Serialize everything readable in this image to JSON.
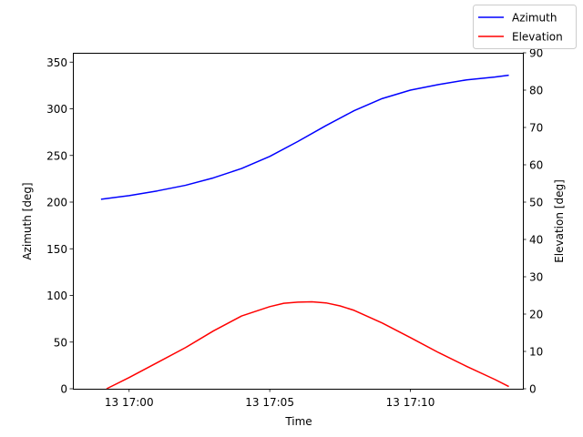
{
  "chart_data": {
    "type": "line",
    "title": "",
    "xlabel": "Time",
    "ylabel_left": "Azimuth [deg]",
    "ylabel_right": "Elevation [deg]",
    "x_ticks": [
      "13 17:00",
      "13 17:05",
      "13 17:10"
    ],
    "x_tick_values": [
      "17:00",
      "17:05",
      "17:10"
    ],
    "xlim": [
      "16:58",
      "17:14"
    ],
    "ylim_left": [
      0,
      360
    ],
    "ylim_right": [
      0,
      90
    ],
    "y_ticks_left": [
      0,
      50,
      100,
      150,
      200,
      250,
      300,
      350
    ],
    "y_ticks_right": [
      0,
      10,
      20,
      30,
      40,
      50,
      60,
      70,
      80,
      90
    ],
    "grid": false,
    "legend_position": "top-right",
    "series": [
      {
        "name": "Azimuth",
        "axis": "left",
        "color": "#0000ff",
        "x": [
          "16:59",
          "17:00",
          "17:01",
          "17:02",
          "17:03",
          "17:04",
          "17:05",
          "17:06",
          "17:07",
          "17:08",
          "17:09",
          "17:10",
          "17:11",
          "17:12",
          "17:13",
          "17:13.5"
        ],
        "values": [
          203,
          207,
          212,
          218,
          226,
          236,
          249,
          265,
          282,
          298,
          311,
          320,
          326,
          331,
          334,
          336
        ]
      },
      {
        "name": "Elevation",
        "axis": "right",
        "color": "#ff0000",
        "x": [
          "16:59.2",
          "17:00",
          "17:01",
          "17:02",
          "17:03",
          "17:04",
          "17:05",
          "17:05.5",
          "17:06",
          "17:06.5",
          "17:07",
          "17:07.5",
          "17:08",
          "17:09",
          "17:10",
          "17:11",
          "17:12",
          "17:13",
          "17:13.5"
        ],
        "values": [
          0,
          3,
          7,
          11,
          15.5,
          19.5,
          22,
          22.9,
          23.2,
          23.3,
          23,
          22.2,
          21,
          17.6,
          13.7,
          9.7,
          6,
          2.5,
          0.6
        ]
      }
    ]
  }
}
